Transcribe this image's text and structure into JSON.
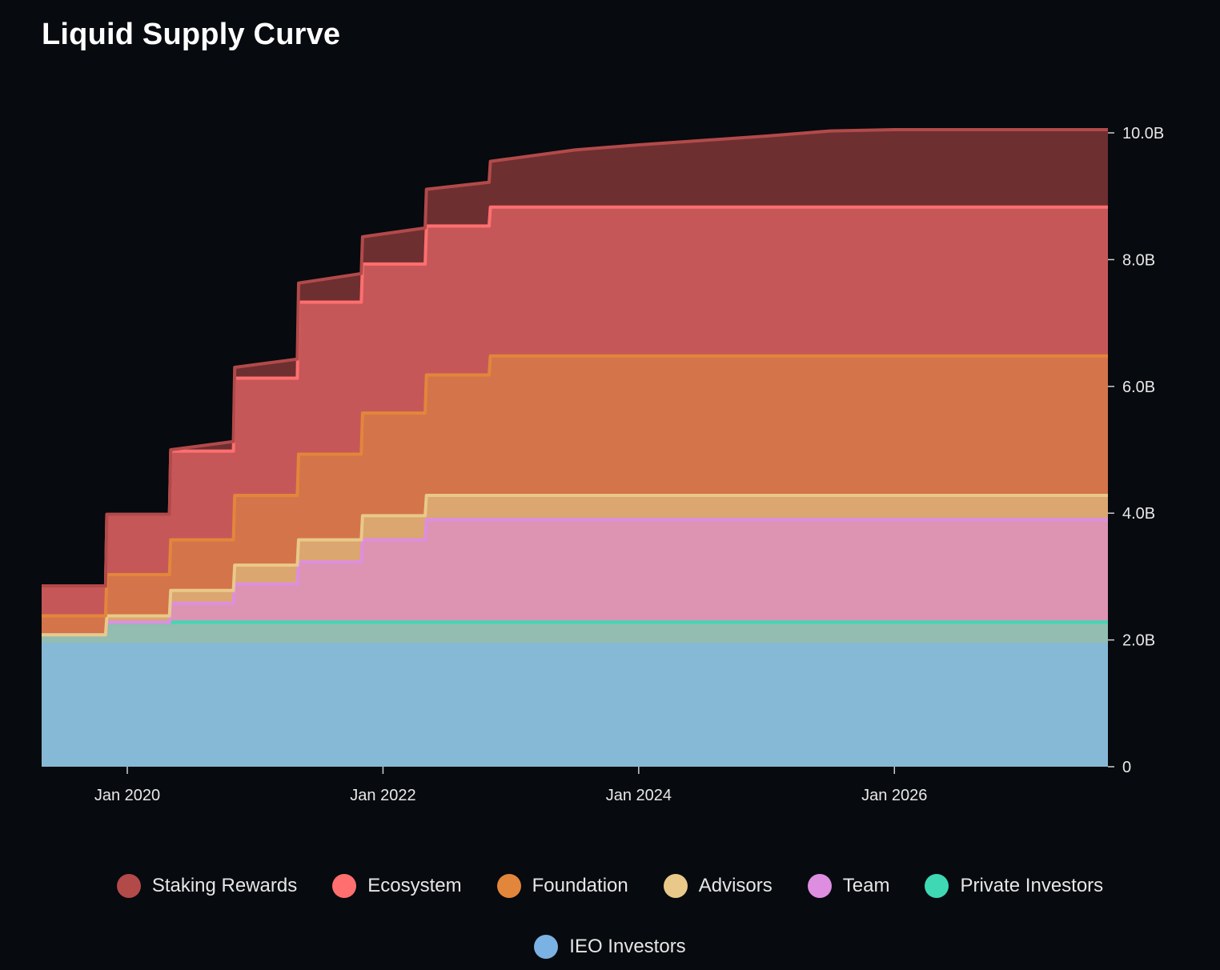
{
  "title": "Liquid Supply Curve",
  "legend_rows": [
    [
      {
        "label": "Staking Rewards",
        "color": "#b24a4a"
      },
      {
        "label": "Ecosystem",
        "color": "#ff6f6f"
      },
      {
        "label": "Foundation",
        "color": "#e2863b"
      },
      {
        "label": "Advisors",
        "color": "#e8c98a"
      },
      {
        "label": "Team",
        "color": "#de8ee0"
      },
      {
        "label": "Private Investors",
        "color": "#3ed8b4"
      }
    ],
    [
      {
        "label": "IEO Investors",
        "color": "#7ab2e4"
      }
    ]
  ],
  "chart_data": {
    "type": "area",
    "stacked": true,
    "title": "Liquid Supply Curve",
    "x_range": [
      2019.33,
      2027.67
    ],
    "ylim": [
      0,
      10000000000
    ],
    "y_ticks": [
      0,
      2000000000,
      4000000000,
      6000000000,
      8000000000,
      10000000000
    ],
    "y_tick_labels": [
      "0",
      "2.0B",
      "4.0B",
      "6.0B",
      "8.0B",
      "10.0B"
    ],
    "x_ticks": [
      2020,
      2022,
      2024,
      2026
    ],
    "x_tick_labels": [
      "Jan 2020",
      "Jan 2022",
      "Jan 2024",
      "Jan 2026"
    ],
    "x": [
      2019.33,
      2019.83,
      2019.84,
      2020.33,
      2020.34,
      2020.83,
      2020.84,
      2021.33,
      2021.34,
      2021.83,
      2021.84,
      2022.33,
      2022.34,
      2022.83,
      2022.84,
      2023.5,
      2024.0,
      2024.5,
      2025.0,
      2025.5,
      2026.0,
      2027.67
    ],
    "series": [
      {
        "name": "IEO Investors",
        "fill": "#86b9d6",
        "line": "#86b9d6",
        "values": [
          1930000000.0,
          1930000000.0,
          1930000000.0,
          1930000000.0,
          1930000000.0,
          1930000000.0,
          1930000000.0,
          1930000000.0,
          1930000000.0,
          1930000000.0,
          1930000000.0,
          1930000000.0,
          1930000000.0,
          1930000000.0,
          1930000000.0,
          1930000000.0,
          1930000000.0,
          1930000000.0,
          1930000000.0,
          1930000000.0,
          1930000000.0,
          1930000000.0
        ]
      },
      {
        "name": "Private Investors",
        "fill": "#92bdb0",
        "line": "#3ed8b4",
        "values": [
          150000000.0,
          150000000.0,
          350000000.0,
          350000000.0,
          350000000.0,
          350000000.0,
          350000000.0,
          350000000.0,
          350000000.0,
          350000000.0,
          350000000.0,
          350000000.0,
          350000000.0,
          350000000.0,
          350000000.0,
          350000000.0,
          350000000.0,
          350000000.0,
          350000000.0,
          350000000.0,
          350000000.0,
          350000000.0
        ]
      },
      {
        "name": "Team",
        "fill": "#dc94b2",
        "line": "#de8ee0",
        "values": [
          0,
          0,
          0,
          0,
          300000000.0,
          300000000.0,
          600000000.0,
          600000000.0,
          950000000.0,
          950000000.0,
          1300000000.0,
          1300000000.0,
          1620000000.0,
          1620000000.0,
          1620000000.0,
          1620000000.0,
          1620000000.0,
          1620000000.0,
          1620000000.0,
          1620000000.0,
          1620000000.0,
          1620000000.0
        ]
      },
      {
        "name": "Advisors",
        "fill": "#dba66f",
        "line": "#e8c98a",
        "values": [
          0,
          0,
          100000000.0,
          100000000.0,
          200000000.0,
          200000000.0,
          300000000.0,
          300000000.0,
          350000000.0,
          350000000.0,
          380000000.0,
          380000000.0,
          380000000.0,
          380000000.0,
          380000000.0,
          380000000.0,
          380000000.0,
          380000000.0,
          380000000.0,
          380000000.0,
          380000000.0,
          380000000.0
        ]
      },
      {
        "name": "Foundation",
        "fill": "#d4744b",
        "line": "#e2863b",
        "values": [
          300000000.0,
          300000000.0,
          650000000.0,
          650000000.0,
          800000000.0,
          800000000.0,
          1100000000.0,
          1100000000.0,
          1350000000.0,
          1350000000.0,
          1620000000.0,
          1620000000.0,
          1900000000.0,
          1900000000.0,
          2200000000.0,
          2200000000.0,
          2200000000.0,
          2200000000.0,
          2200000000.0,
          2200000000.0,
          2200000000.0,
          2200000000.0
        ]
      },
      {
        "name": "Ecosystem",
        "fill": "#c65758",
        "line": "#ff6f6f",
        "values": [
          470000000.0,
          470000000.0,
          950000000.0,
          950000000.0,
          1400000000.0,
          1400000000.0,
          1850000000.0,
          1850000000.0,
          2400000000.0,
          2400000000.0,
          2350000000.0,
          2350000000.0,
          2350000000.0,
          2350000000.0,
          2350000000.0,
          2350000000.0,
          2350000000.0,
          2350000000.0,
          2350000000.0,
          2350000000.0,
          2350000000.0,
          2350000000.0
        ]
      },
      {
        "name": "Staking Rewards",
        "fill": "#6e2f31",
        "line": "#b24a4a",
        "values": [
          0,
          0,
          0,
          0,
          20000000.0,
          150000000.0,
          170000000.0,
          300000000.0,
          300000000.0,
          450000000.0,
          430000000.0,
          570000000.0,
          580000000.0,
          690000000.0,
          720000000.0,
          900000000.0,
          980000000.0,
          1050000000.0,
          1120000000.0,
          1200000000.0,
          1220000000.0,
          1220000000.0
        ]
      }
    ]
  }
}
